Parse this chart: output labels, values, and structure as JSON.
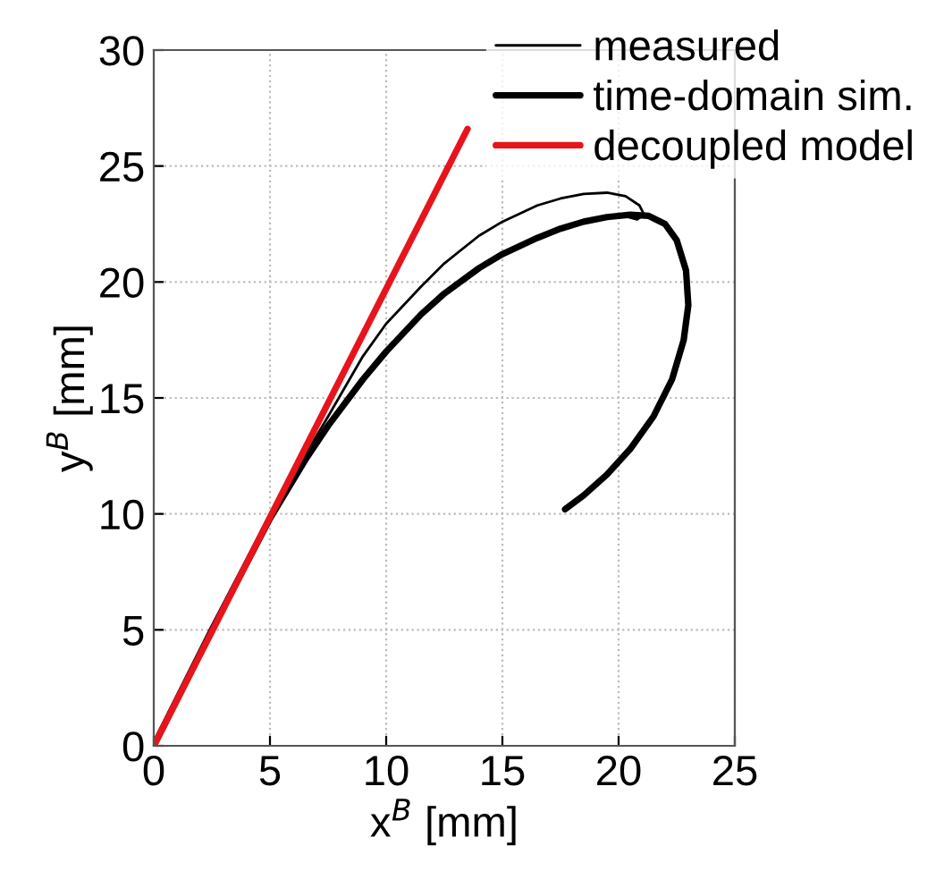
{
  "chart_data": {
    "type": "line",
    "xlabel": "x$^{B}$ [mm]",
    "ylabel": "y$^{B}$ [mm]",
    "xlim": [
      0,
      25
    ],
    "ylim": [
      0,
      30
    ],
    "xticks": [
      0,
      5,
      10,
      15,
      20,
      25
    ],
    "yticks": [
      0,
      5,
      10,
      15,
      20,
      25,
      30
    ],
    "grid": true,
    "legend": "top right",
    "marker": "none",
    "line_style": "solid",
    "series": [
      {
        "name": "measured",
        "color": "#000000",
        "x": [
          0,
          2.5,
          5,
          7.5,
          9,
          10,
          11.5,
          12.5,
          14,
          15,
          16.5,
          17.5,
          18.5,
          19.5,
          20.3,
          20.9,
          21.1,
          20.8,
          20.4,
          20.6,
          21.3,
          22,
          22.5,
          22.9,
          23,
          22.8,
          22.3,
          21.5,
          20.5,
          19.5,
          18.5,
          17.7
        ],
        "values": [
          0,
          5,
          10,
          14.2,
          16.8,
          18.2,
          19.8,
          20.8,
          22,
          22.6,
          23.3,
          23.6,
          23.8,
          23.85,
          23.7,
          23.3,
          22.9,
          22.7,
          22.8,
          22.95,
          22.9,
          22.5,
          21.8,
          20.5,
          19,
          17.5,
          15.8,
          14.2,
          12.8,
          11.7,
          10.8,
          10.2
        ]
      },
      {
        "name": "time-domain sim.",
        "color": "#000000",
        "x": [
          0,
          2.5,
          5,
          6.5,
          7.5,
          9,
          10,
          11.5,
          12.5,
          14,
          15,
          16.5,
          17.5,
          18.5,
          19.5,
          20.5,
          21.3,
          22,
          22.5,
          22.9,
          23,
          22.8,
          22.3,
          21.5,
          20.5,
          19.5,
          18.5,
          17.7
        ],
        "values": [
          0,
          5,
          9.8,
          12.3,
          13.8,
          15.8,
          17,
          18.6,
          19.5,
          20.6,
          21.2,
          21.9,
          22.3,
          22.6,
          22.8,
          22.9,
          22.85,
          22.5,
          21.8,
          20.5,
          19,
          17.5,
          15.8,
          14.2,
          12.8,
          11.7,
          10.8,
          10.2
        ]
      },
      {
        "name": "decoupled model",
        "color": "#e8141c",
        "x": [
          0,
          13.5
        ],
        "values": [
          0,
          26.6
        ]
      }
    ]
  }
}
